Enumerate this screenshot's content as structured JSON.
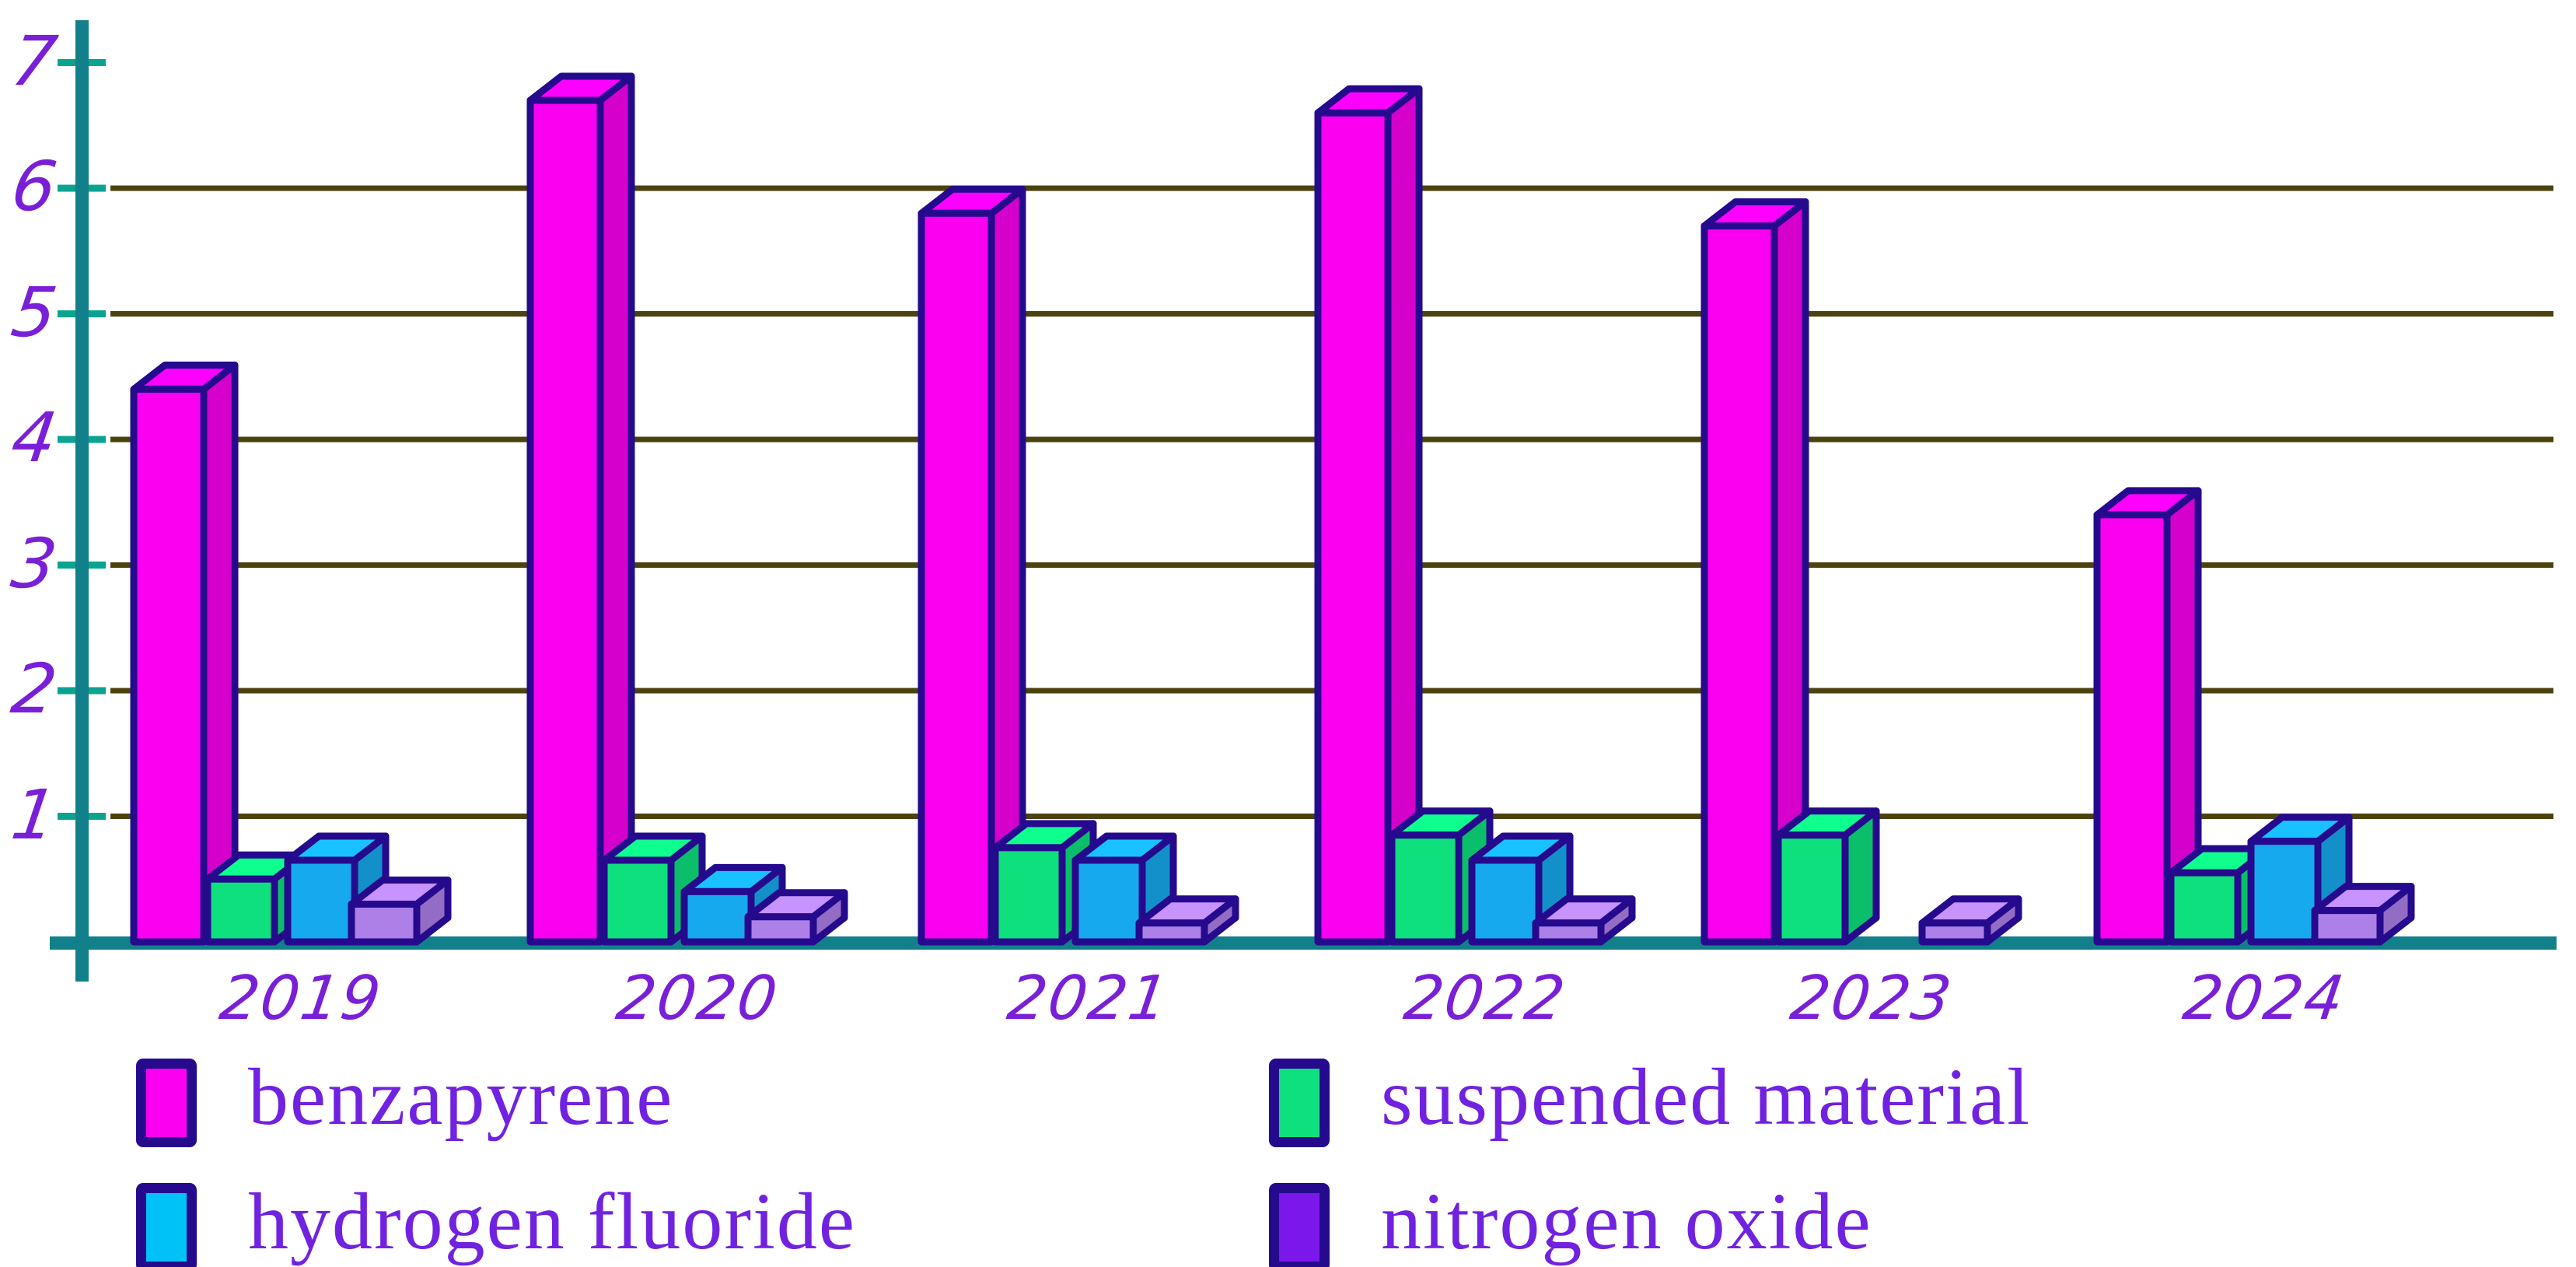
{
  "chart_data": {
    "type": "bar",
    "style": "3d-grouped-bars",
    "title": "",
    "xlabel": "",
    "ylabel": "",
    "categories": [
      "2019",
      "2020",
      "2021",
      "2022",
      "2023",
      "2024"
    ],
    "series": [
      {
        "name": "benzapyrene",
        "color": "#fb00f0",
        "values": [
          4.4,
          6.7,
          5.8,
          6.6,
          5.7,
          3.4
        ]
      },
      {
        "name": "suspended material",
        "color": "#0de07c",
        "values": [
          0.5,
          0.65,
          0.75,
          0.85,
          0.85,
          0.55
        ]
      },
      {
        "name": "hydrogen fluoride",
        "color": "#16a9ee",
        "values": [
          0.65,
          0.4,
          0.65,
          0.65,
          0,
          0.8
        ]
      },
      {
        "name": "nitrogen oxide",
        "color": "#ad80e8",
        "values": [
          0.3,
          0.2,
          0.15,
          0.15,
          0.15,
          0.25
        ]
      }
    ],
    "ylim": [
      0,
      7
    ],
    "yticks": [
      1,
      2,
      3,
      4,
      5,
      6,
      7
    ],
    "gridlines_at": [
      1,
      2,
      3,
      4,
      5,
      6
    ],
    "grid": true,
    "legend_position": "bottom"
  },
  "legend": {
    "items": [
      {
        "label": "benzapyrene",
        "color": "#fb00f0"
      },
      {
        "label": "suspended material",
        "color": "#0de07c"
      },
      {
        "label": "hydrogen fluoride",
        "color": "#00c2f7"
      },
      {
        "label": "nitrogen oxide",
        "color": "#7c17eb"
      }
    ]
  },
  "colors": {
    "axis": "#11808a",
    "tick": "#0aa38f",
    "gridline": "#4c420e",
    "bar_outline": "#250a8e",
    "axis_label_text": "#7a1fd8",
    "legend_text": "#7122e0"
  }
}
